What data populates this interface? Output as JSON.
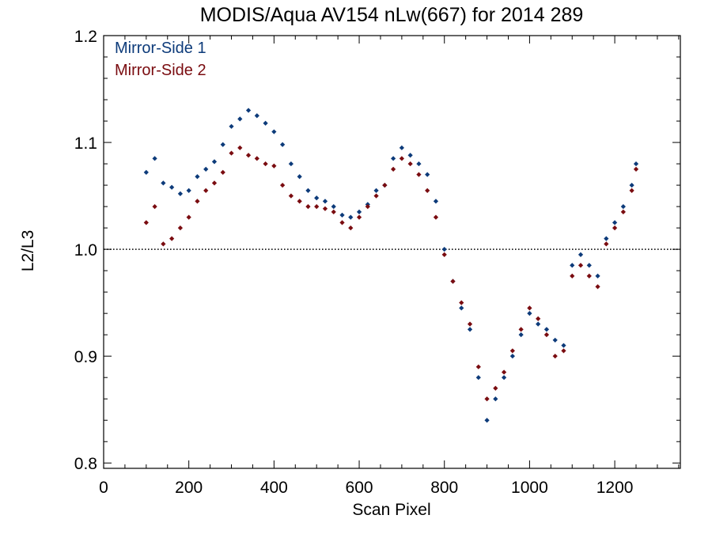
{
  "chart_data": {
    "type": "scatter",
    "title": "MODIS/Aqua AV154 nLw(667) for 2014 289",
    "xlabel": "Scan Pixel",
    "ylabel": "L2/L3",
    "xlim": [
      0,
      1354
    ],
    "ylim": [
      0.795,
      1.2
    ],
    "x_ticks": [
      0,
      200,
      400,
      600,
      800,
      1000,
      1200
    ],
    "y_ticks": [
      0.8,
      0.9,
      1.0,
      1.1,
      1.2
    ],
    "x_tick_labels": [
      "0",
      "200",
      "400",
      "600",
      "800",
      "1000",
      "1200"
    ],
    "y_tick_labels": [
      "0.8",
      "0.9",
      "1.0",
      "1.1",
      "1.2"
    ],
    "reference_line": {
      "y": 1.0,
      "style": "dotted",
      "color": "#000000"
    },
    "legend_position": "top-left",
    "series": [
      {
        "name": "Mirror-Side 1",
        "color": "#0d3b7a",
        "points": [
          [
            100,
            1.072
          ],
          [
            120,
            1.085
          ],
          [
            140,
            1.062
          ],
          [
            160,
            1.058
          ],
          [
            180,
            1.052
          ],
          [
            200,
            1.055
          ],
          [
            220,
            1.068
          ],
          [
            240,
            1.075
          ],
          [
            260,
            1.082
          ],
          [
            280,
            1.098
          ],
          [
            300,
            1.115
          ],
          [
            320,
            1.122
          ],
          [
            340,
            1.13
          ],
          [
            360,
            1.125
          ],
          [
            380,
            1.118
          ],
          [
            400,
            1.11
          ],
          [
            420,
            1.098
          ],
          [
            440,
            1.08
          ],
          [
            460,
            1.068
          ],
          [
            480,
            1.055
          ],
          [
            500,
            1.048
          ],
          [
            520,
            1.045
          ],
          [
            540,
            1.04
          ],
          [
            560,
            1.032
          ],
          [
            580,
            1.03
          ],
          [
            600,
            1.035
          ],
          [
            620,
            1.042
          ],
          [
            640,
            1.055
          ],
          [
            660,
            1.06
          ],
          [
            680,
            1.085
          ],
          [
            700,
            1.095
          ],
          [
            720,
            1.088
          ],
          [
            740,
            1.08
          ],
          [
            760,
            1.07
          ],
          [
            780,
            1.045
          ],
          [
            800,
            1.0
          ],
          [
            820,
            0.97
          ],
          [
            840,
            0.945
          ],
          [
            860,
            0.925
          ],
          [
            880,
            0.88
          ],
          [
            900,
            0.84
          ],
          [
            920,
            0.86
          ],
          [
            940,
            0.88
          ],
          [
            960,
            0.9
          ],
          [
            980,
            0.92
          ],
          [
            1000,
            0.94
          ],
          [
            1020,
            0.93
          ],
          [
            1040,
            0.925
          ],
          [
            1060,
            0.915
          ],
          [
            1080,
            0.91
          ],
          [
            1100,
            0.985
          ],
          [
            1120,
            0.995
          ],
          [
            1140,
            0.985
          ],
          [
            1160,
            0.975
          ],
          [
            1180,
            1.01
          ],
          [
            1200,
            1.025
          ],
          [
            1220,
            1.04
          ],
          [
            1240,
            1.06
          ],
          [
            1250,
            1.08
          ]
        ]
      },
      {
        "name": "Mirror-Side 2",
        "color": "#7a0c10",
        "points": [
          [
            100,
            1.025
          ],
          [
            120,
            1.04
          ],
          [
            140,
            1.005
          ],
          [
            160,
            1.01
          ],
          [
            180,
            1.02
          ],
          [
            200,
            1.03
          ],
          [
            220,
            1.045
          ],
          [
            240,
            1.055
          ],
          [
            260,
            1.062
          ],
          [
            280,
            1.072
          ],
          [
            300,
            1.09
          ],
          [
            320,
            1.095
          ],
          [
            340,
            1.088
          ],
          [
            360,
            1.085
          ],
          [
            380,
            1.08
          ],
          [
            400,
            1.078
          ],
          [
            420,
            1.06
          ],
          [
            440,
            1.05
          ],
          [
            460,
            1.045
          ],
          [
            480,
            1.04
          ],
          [
            500,
            1.04
          ],
          [
            520,
            1.038
          ],
          [
            540,
            1.035
          ],
          [
            560,
            1.025
          ],
          [
            580,
            1.02
          ],
          [
            600,
            1.03
          ],
          [
            620,
            1.04
          ],
          [
            640,
            1.05
          ],
          [
            660,
            1.06
          ],
          [
            680,
            1.075
          ],
          [
            700,
            1.085
          ],
          [
            720,
            1.08
          ],
          [
            740,
            1.07
          ],
          [
            760,
            1.055
          ],
          [
            780,
            1.03
          ],
          [
            800,
            0.995
          ],
          [
            820,
            0.97
          ],
          [
            840,
            0.95
          ],
          [
            860,
            0.93
          ],
          [
            880,
            0.89
          ],
          [
            900,
            0.86
          ],
          [
            920,
            0.87
          ],
          [
            940,
            0.885
          ],
          [
            960,
            0.905
          ],
          [
            980,
            0.925
          ],
          [
            1000,
            0.945
          ],
          [
            1020,
            0.935
          ],
          [
            1040,
            0.92
          ],
          [
            1060,
            0.9
          ],
          [
            1080,
            0.905
          ],
          [
            1100,
            0.975
          ],
          [
            1120,
            0.985
          ],
          [
            1140,
            0.975
          ],
          [
            1160,
            0.965
          ],
          [
            1180,
            1.005
          ],
          [
            1200,
            1.02
          ],
          [
            1220,
            1.035
          ],
          [
            1240,
            1.055
          ],
          [
            1250,
            1.075
          ]
        ]
      }
    ]
  }
}
